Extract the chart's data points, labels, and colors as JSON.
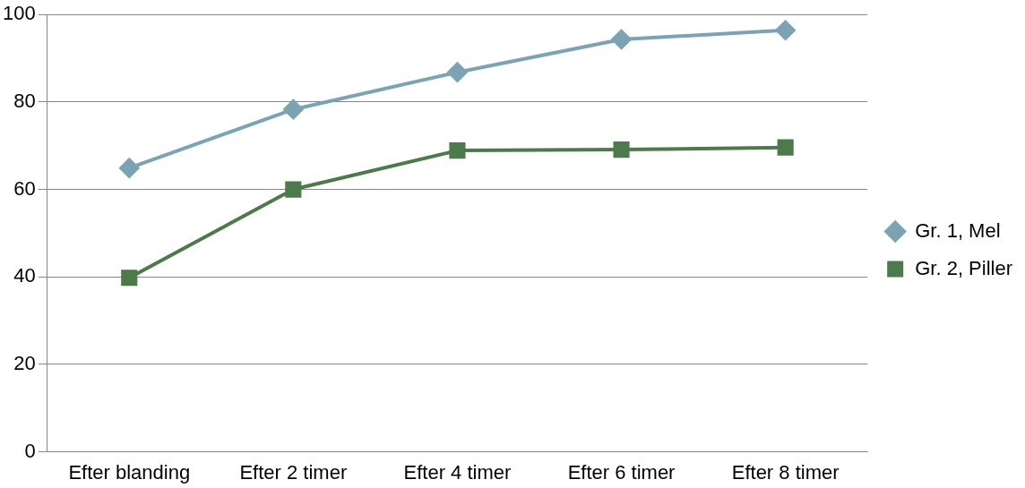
{
  "chart_data": {
    "type": "line",
    "categories": [
      "Efter blanding",
      "Efter 2 timer",
      "Efter 4 timer",
      "Efter 6 timer",
      "Efter 8 timer"
    ],
    "series": [
      {
        "name": "Gr. 1, Mel",
        "color": "#7ba3b3",
        "marker": "diamond",
        "values": [
          64.9,
          78.3,
          86.8,
          94.3,
          96.4
        ]
      },
      {
        "name": "Gr. 2, Piller",
        "color": "#4c7a4a",
        "marker": "square",
        "values": [
          39.8,
          60,
          68.9,
          69.1,
          69.6
        ]
      }
    ],
    "ylim": [
      0,
      100
    ],
    "yticks": [
      0,
      20,
      40,
      60,
      80,
      100
    ],
    "grid": "y",
    "legend": "right",
    "line_style": "solid"
  }
}
